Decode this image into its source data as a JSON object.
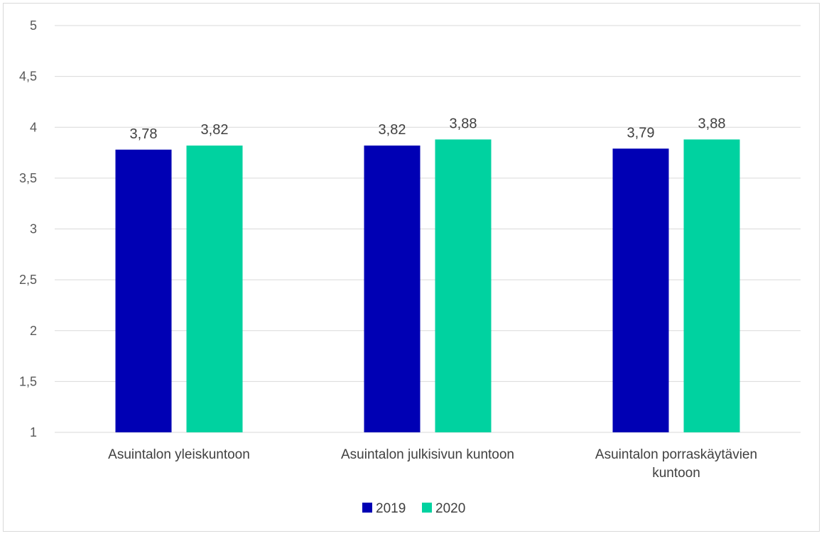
{
  "chart_data": {
    "type": "bar",
    "categories": [
      [
        "Asuintalon yleiskuntoon"
      ],
      [
        "Asuintalon julkisivun kuntoon"
      ],
      [
        "Asuintalon porraskäytävien",
        "kuntoon"
      ]
    ],
    "series": [
      {
        "name": "2019",
        "color": "#0000b4",
        "values": [
          3.78,
          3.82,
          3.79
        ],
        "labels": [
          "3,78",
          "3,82",
          "3,79"
        ]
      },
      {
        "name": "2020",
        "color": "#00d2a0",
        "values": [
          3.82,
          3.88,
          3.88
        ],
        "labels": [
          "3,82",
          "3,88",
          "3,88"
        ]
      }
    ],
    "ylim": [
      1,
      5
    ],
    "yticks": [
      1,
      1.5,
      2,
      2.5,
      3,
      3.5,
      4,
      4.5,
      5
    ],
    "ytick_labels": [
      "1",
      "1,5",
      "2",
      "2,5",
      "3",
      "3,5",
      "4",
      "4,5",
      "5"
    ],
    "grid": true,
    "legend_position": "bottom"
  }
}
